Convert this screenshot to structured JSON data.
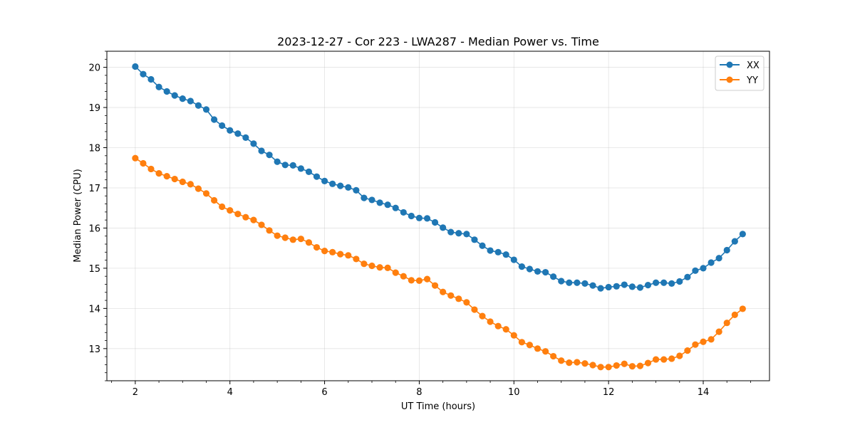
{
  "chart_data": {
    "type": "line",
    "title": "2023-12-27 - Cor 223 - LWA287 - Median Power vs. Time",
    "xlabel": "UT Time (hours)",
    "ylabel": "Median Power (CPU)",
    "xlim": [
      1.4,
      15.4
    ],
    "ylim": [
      12.2,
      20.4
    ],
    "xticks": [
      2,
      4,
      6,
      8,
      10,
      12,
      14
    ],
    "yticks": [
      13,
      14,
      15,
      16,
      17,
      18,
      19,
      20
    ],
    "grid": true,
    "legend": "top-right",
    "x": [
      2.0,
      2.167,
      2.333,
      2.5,
      2.667,
      2.833,
      3.0,
      3.167,
      3.333,
      3.5,
      3.667,
      3.833,
      4.0,
      4.167,
      4.333,
      4.5,
      4.667,
      4.833,
      5.0,
      5.167,
      5.333,
      5.5,
      5.667,
      5.833,
      6.0,
      6.167,
      6.333,
      6.5,
      6.667,
      6.833,
      7.0,
      7.167,
      7.333,
      7.5,
      7.667,
      7.833,
      8.0,
      8.167,
      8.333,
      8.5,
      8.667,
      8.833,
      9.0,
      9.167,
      9.333,
      9.5,
      9.667,
      9.833,
      10.0,
      10.167,
      10.333,
      10.5,
      10.667,
      10.833,
      11.0,
      11.167,
      11.333,
      11.5,
      11.667,
      11.833,
      12.0,
      12.167,
      12.333,
      12.5,
      12.667,
      12.833,
      13.0,
      13.167,
      13.333,
      13.5,
      13.667,
      13.833,
      14.0,
      14.167,
      14.333,
      14.5,
      14.667,
      14.833
    ],
    "series": [
      {
        "name": "XX",
        "color": "#1f77b4",
        "values": [
          20.02,
          19.83,
          19.7,
          19.51,
          19.4,
          19.3,
          19.22,
          19.16,
          19.05,
          18.95,
          18.7,
          18.55,
          18.43,
          18.35,
          18.25,
          18.1,
          17.92,
          17.82,
          17.65,
          17.57,
          17.56,
          17.48,
          17.4,
          17.28,
          17.17,
          17.1,
          17.05,
          17.01,
          16.94,
          16.75,
          16.7,
          16.63,
          16.58,
          16.5,
          16.39,
          16.3,
          16.25,
          16.24,
          16.14,
          16.01,
          15.9,
          15.87,
          15.85,
          15.71,
          15.56,
          15.44,
          15.4,
          15.34,
          15.21,
          15.04,
          14.98,
          14.92,
          14.9,
          14.79,
          14.68,
          14.64,
          14.64,
          14.62,
          14.57,
          14.5,
          14.53,
          14.55,
          14.59,
          14.54,
          14.52,
          14.58,
          14.64,
          14.64,
          14.62,
          14.67,
          14.78,
          14.94,
          15.0,
          15.14,
          15.25,
          15.45,
          15.67,
          15.85
        ]
      },
      {
        "name": "YY",
        "color": "#ff7f0e",
        "values": [
          17.74,
          17.61,
          17.47,
          17.36,
          17.29,
          17.22,
          17.15,
          17.09,
          16.98,
          16.86,
          16.69,
          16.53,
          16.44,
          16.35,
          16.27,
          16.2,
          16.08,
          15.94,
          15.81,
          15.76,
          15.71,
          15.73,
          15.64,
          15.52,
          15.43,
          15.4,
          15.35,
          15.32,
          15.23,
          15.11,
          15.06,
          15.02,
          15.01,
          14.89,
          14.8,
          14.7,
          14.69,
          14.73,
          14.57,
          14.41,
          14.32,
          14.24,
          14.15,
          13.97,
          13.81,
          13.67,
          13.56,
          13.48,
          13.33,
          13.16,
          13.09,
          13.0,
          12.93,
          12.81,
          12.7,
          12.65,
          12.66,
          12.63,
          12.59,
          12.54,
          12.54,
          12.58,
          12.62,
          12.56,
          12.57,
          12.64,
          12.73,
          12.73,
          12.75,
          12.82,
          12.95,
          13.1,
          13.17,
          13.23,
          13.42,
          13.64,
          13.84,
          13.99
        ]
      }
    ]
  }
}
